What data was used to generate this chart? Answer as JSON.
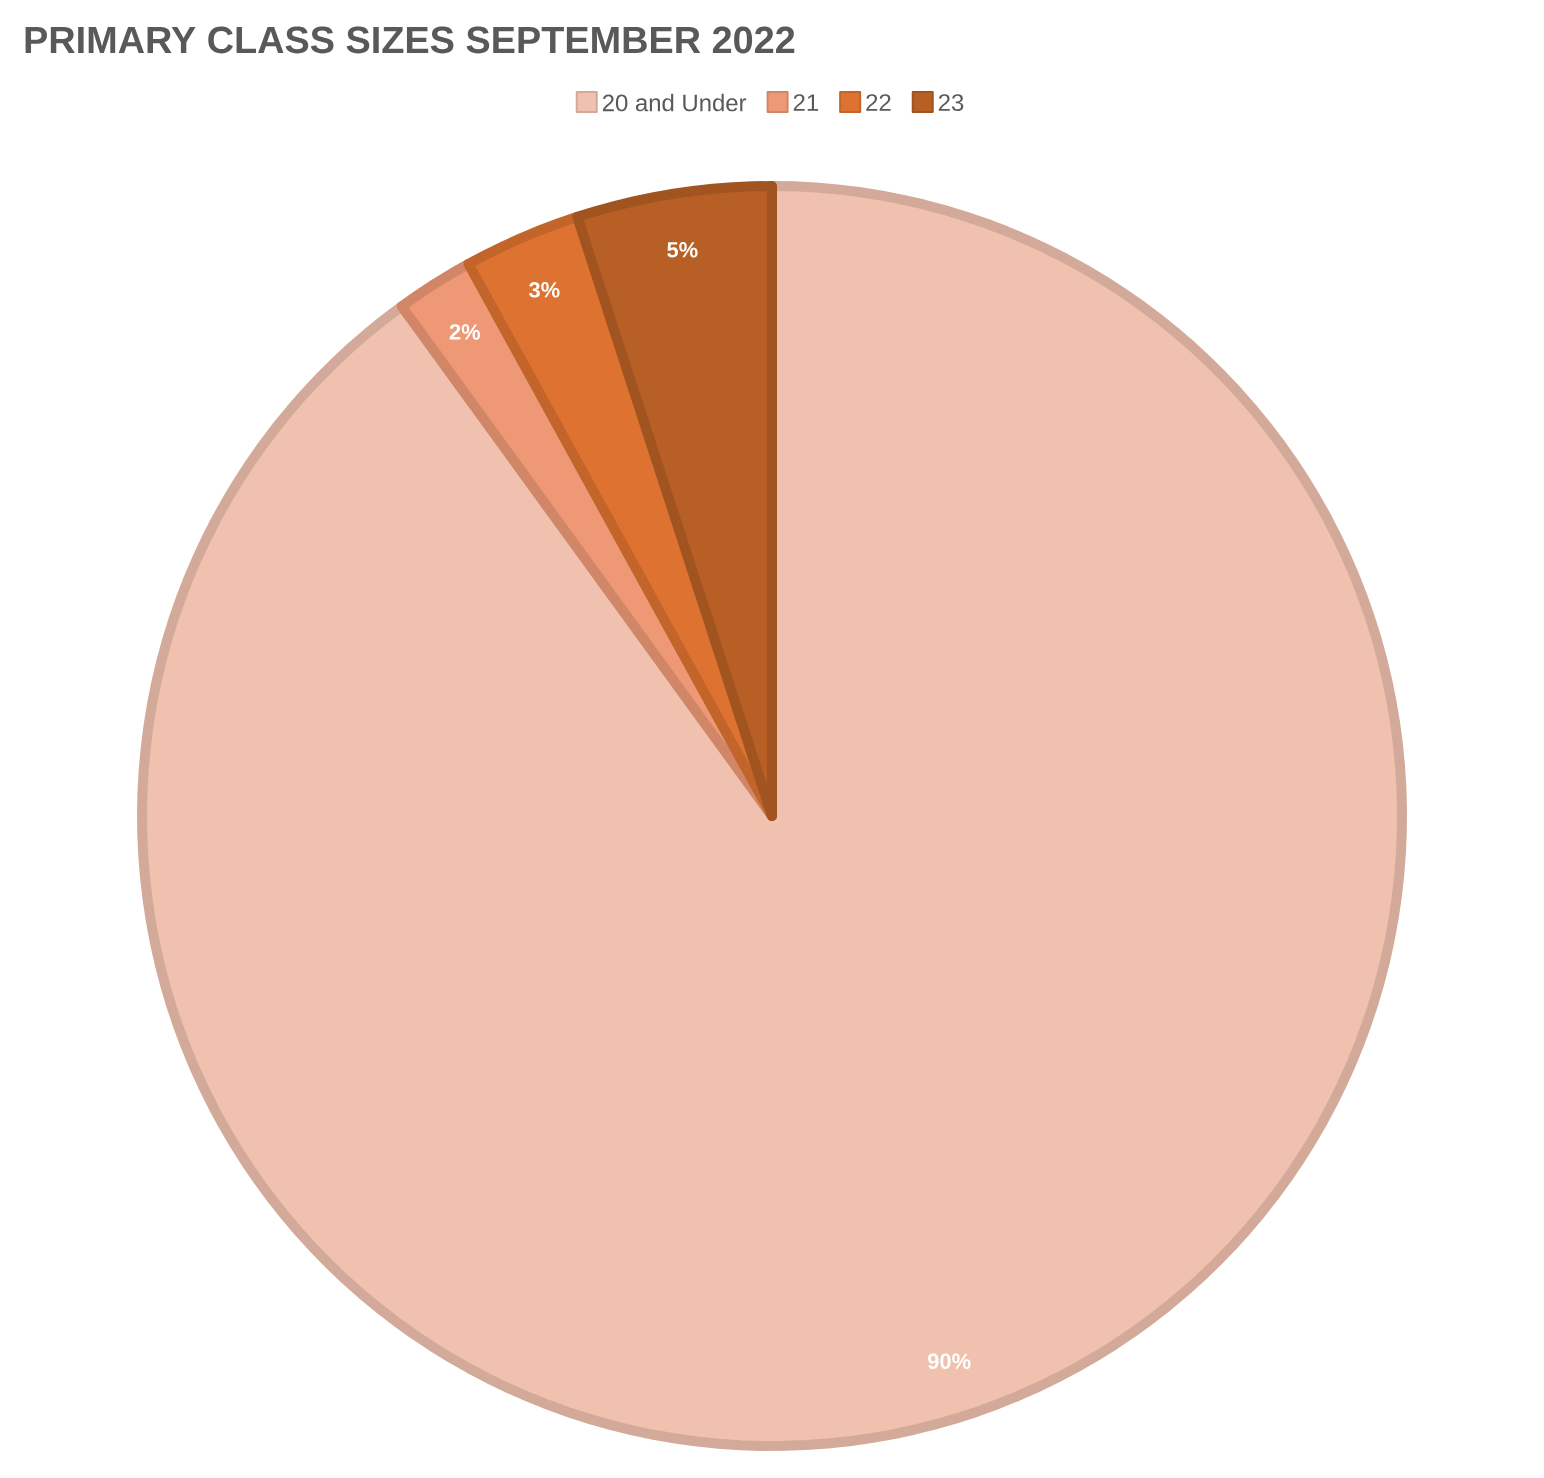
{
  "chart_data": {
    "type": "pie",
    "title": "PRIMARY CLASS SIZES SEPTEMBER 2022",
    "categories": [
      "20 and Under",
      "21",
      "22",
      "23"
    ],
    "values": [
      90,
      2,
      3,
      5
    ],
    "colors": [
      "#f0c1ae",
      "#ee9875",
      "#de7230",
      "#b75f24"
    ],
    "value_labels": [
      "90%",
      "2%",
      "3%",
      "5%"
    ],
    "legend": "top"
  }
}
